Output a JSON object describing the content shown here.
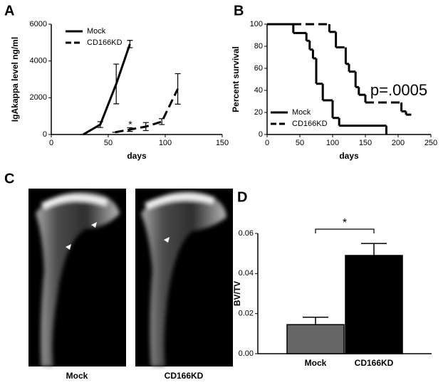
{
  "chart_data": [
    {
      "type": "line",
      "panel_label": "A",
      "x_label": "days",
      "y_label": "IgAkappa level ng/ml",
      "xlim": [
        0,
        150
      ],
      "xticks": [
        0,
        50,
        100,
        150
      ],
      "ylim": [
        0,
        6000
      ],
      "yticks": [
        0,
        2000,
        4000,
        6000
      ],
      "legend": "upper left",
      "annotation": "*",
      "series": [
        {
          "name": "Mock",
          "color": "#000000",
          "line_style": "solid",
          "x": [
            28,
            43,
            57,
            69
          ],
          "values": [
            0,
            540,
            2750,
            4920
          ],
          "errors": [
            0,
            160,
            1080,
            200
          ]
        },
        {
          "name": "CD166KD",
          "color": "#000000",
          "line_style": "dashed",
          "x": [
            56,
            69,
            83,
            97,
            111
          ],
          "values": [
            120,
            270,
            430,
            700,
            2480
          ],
          "errors": [
            0,
            100,
            220,
            160,
            830
          ]
        }
      ]
    },
    {
      "type": "survival",
      "panel_label": "B",
      "x_label": "days",
      "y_label": "Percent survival",
      "xlim": [
        0,
        250
      ],
      "xticks": [
        0,
        50,
        100,
        150,
        200,
        250
      ],
      "ylim": [
        0,
        100
      ],
      "yticks": [
        0,
        20,
        40,
        60,
        80,
        100
      ],
      "legend": "lower left",
      "annotation": "p=.0005",
      "series": [
        {
          "name": "Mock",
          "color": "#000000",
          "line_style": "solid",
          "x": [
            0,
            40,
            60,
            65,
            70,
            75,
            85,
            100,
            110,
            182
          ],
          "values": [
            100,
            92,
            85,
            77,
            69,
            46,
            31,
            15,
            8,
            0
          ]
        },
        {
          "name": "CD166KD",
          "color": "#000000",
          "line_style": "dashed",
          "x": [
            0,
            95,
            105,
            120,
            125,
            135,
            140,
            150,
            205,
            212,
            220
          ],
          "values": [
            100,
            93,
            79,
            64,
            57,
            43,
            36,
            29,
            21,
            18,
            18
          ]
        }
      ]
    },
    {
      "type": "bar",
      "panel_label": "D",
      "y_label": "BV/TV",
      "annotation": "*",
      "categories": [
        "Mock",
        "CD166KD"
      ],
      "values": [
        0.0145,
        0.049
      ],
      "errors": [
        0.0037,
        0.006
      ],
      "colors": [
        "#666666",
        "#000000"
      ],
      "ylim": [
        0,
        0.06
      ],
      "yticks": [
        {
          "value": 0,
          "label": "0.00"
        },
        {
          "value": 0.02,
          "label": "0.02"
        },
        {
          "value": 0.04,
          "label": "0.04"
        },
        {
          "value": 0.06,
          "label": "0.06"
        }
      ]
    }
  ],
  "images": {
    "panel_label": "C",
    "labels": [
      "Mock",
      "CD166KD"
    ]
  }
}
